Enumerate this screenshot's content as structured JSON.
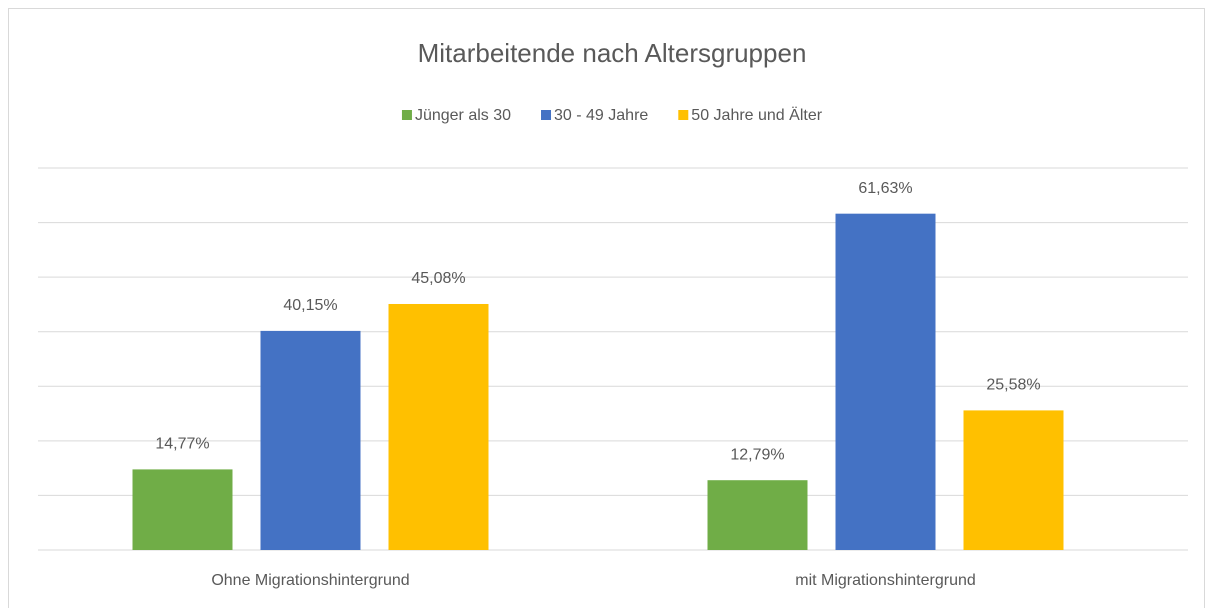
{
  "chart_data": {
    "type": "bar",
    "title": "Mitarbeitende nach Altersgruppen",
    "categories": [
      "Ohne Migrationshintergrund",
      "mit Migrationshintergrund"
    ],
    "series": [
      {
        "name": "Jünger als 30",
        "color": "#70ad47",
        "values": [
          14.77,
          12.79
        ],
        "value_labels": [
          "14,77%",
          "12,79%"
        ]
      },
      {
        "name": "30 - 49 Jahre",
        "color": "#4472c4",
        "values": [
          40.15,
          61.63
        ],
        "value_labels": [
          "40,15%",
          "61,63%"
        ]
      },
      {
        "name": "50 Jahre und Älter",
        "color": "#ffc000",
        "values": [
          45.08,
          25.58
        ],
        "value_labels": [
          "45,08%",
          "25,58%"
        ]
      }
    ],
    "ylim": [
      0,
      70
    ],
    "yticks": [
      0,
      10,
      20,
      30,
      40,
      50,
      60,
      70
    ],
    "grid": true,
    "legend": "top"
  }
}
